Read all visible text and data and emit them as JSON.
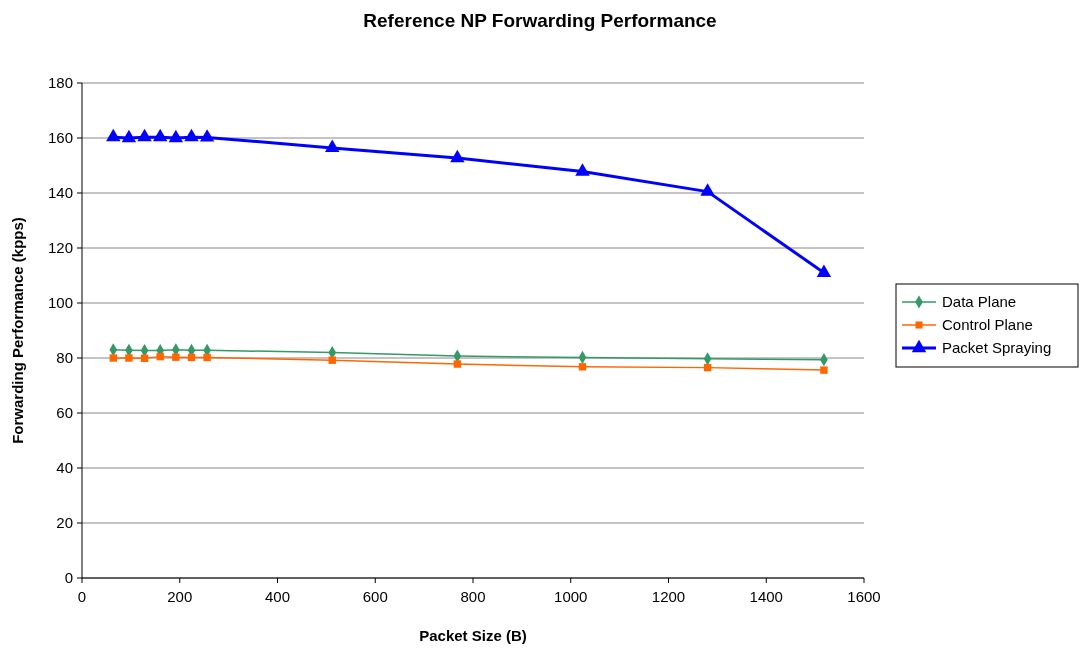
{
  "chart_data": {
    "type": "line",
    "title": "Reference NP Forwarding Performance",
    "xlabel": "Packet Size (B)",
    "ylabel": "Forwarding Performance (kpps)",
    "x": [
      64,
      96,
      128,
      160,
      192,
      224,
      256,
      512,
      768,
      1024,
      1280,
      1518
    ],
    "series": [
      {
        "name": "Data Plane",
        "color": "#339966",
        "marker": "diamond",
        "values": [
          83,
          82.8,
          82.7,
          82.7,
          83,
          82.8,
          82.8,
          82,
          80.7,
          80.2,
          79.7,
          79.4
        ]
      },
      {
        "name": "Control Plane",
        "color": "#ff6600",
        "marker": "square",
        "values": [
          80,
          80,
          79.9,
          80.5,
          80.3,
          80.2,
          80.2,
          79.2,
          77.8,
          76.8,
          76.5,
          75.6
        ]
      },
      {
        "name": "Packet Spraying",
        "color": "#0000ff",
        "marker": "triangle",
        "values": [
          160.3,
          160,
          160.3,
          160.3,
          160,
          160.3,
          160.2,
          156.4,
          152.7,
          147.8,
          140.5,
          111
        ]
      }
    ],
    "xlim": [
      0,
      1600
    ],
    "xticks": [
      0,
      200,
      400,
      600,
      800,
      1000,
      1200,
      1400,
      1600
    ],
    "ylim": [
      0,
      180
    ],
    "yticks": [
      0,
      20,
      40,
      60,
      80,
      100,
      120,
      140,
      160,
      180
    ],
    "grid": "y",
    "legend": "right"
  }
}
